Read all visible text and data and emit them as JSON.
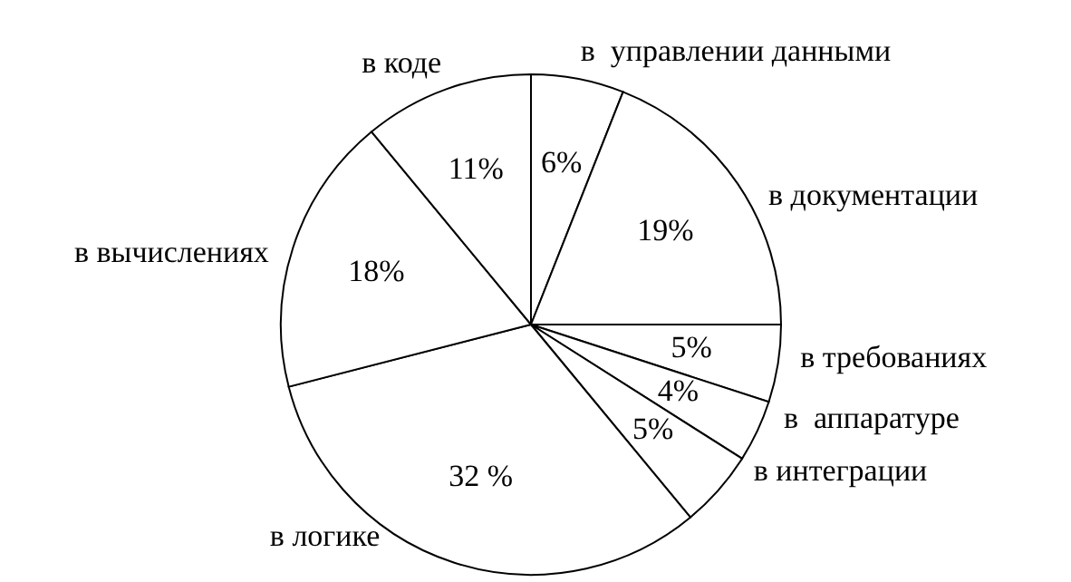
{
  "chart_data": {
    "type": "pie",
    "categories": [
      "в  управлении данными",
      "в документации",
      "в требованиях",
      "в  аппаратуре",
      "в интеграции",
      "в логике",
      "в вычислениях",
      "в коде"
    ],
    "values": [
      6,
      19,
      5,
      4,
      5,
      32,
      18,
      11
    ],
    "value_labels": [
      "6%",
      "19%",
      "5%",
      "4%",
      "5%",
      "32 %",
      "18%",
      "11%"
    ],
    "colors": [
      "#ffffff",
      "#ffffff",
      "#ffffff",
      "#ffffff",
      "#ffffff",
      "#ffffff",
      "#ffffff",
      "#ffffff"
    ],
    "legend": false
  }
}
